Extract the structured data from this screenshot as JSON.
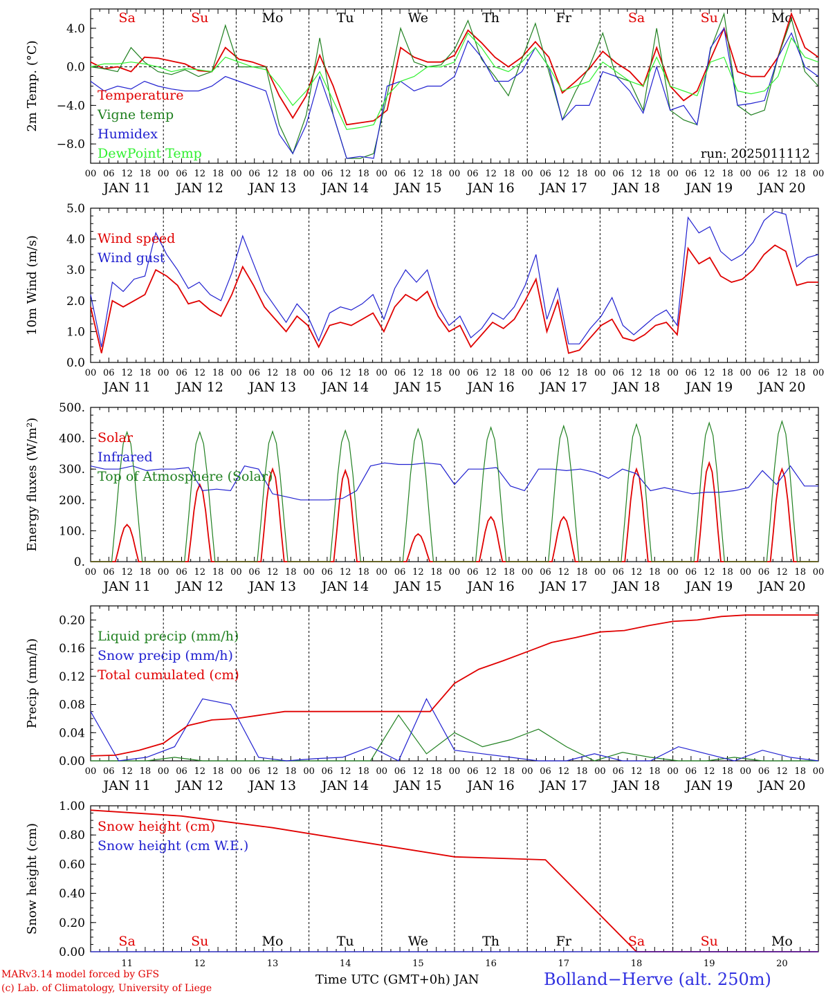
{
  "chart_data": [
    {
      "type": "line",
      "ylabel": "2m Temp. (°C)",
      "ylim": [
        -10,
        6
      ],
      "yticks": [
        -8.0,
        -4.0,
        0.0,
        4.0
      ],
      "ytick_labels": [
        "−8.0",
        "−4.0",
        "0.0",
        "4.0"
      ],
      "zero_line": true,
      "annotation": "run: 2025011112",
      "legend": [
        "Temperature",
        "Vigne temp",
        "Humidex",
        "DewPoint Temp"
      ],
      "series": [
        {
          "name": "Temperature",
          "color": "#e00000",
          "values": [
            0.5,
            -0.2,
            0.0,
            -0.5,
            1.0,
            0.9,
            0.6,
            0.3,
            -0.4,
            -0.5,
            2.0,
            0.8,
            0.5,
            0.0,
            -3.0,
            -5.3,
            -3.0,
            1.2,
            -2.0,
            -6.0,
            -5.8,
            -5.6,
            -4.5,
            2.0,
            1.0,
            0.5,
            0.5,
            1.2,
            3.8,
            2.5,
            1.0,
            0.0,
            1.0,
            2.6,
            1.0,
            -2.7,
            -1.5,
            -0.2,
            1.6,
            0.4,
            -0.5,
            -2.0,
            2.0,
            -2.0,
            -3.5,
            -2.5,
            0.8,
            4.0,
            -0.5,
            -1.0,
            -1.0,
            1.0,
            5.5,
            2.0,
            1.0
          ]
        },
        {
          "name": "Vigne temp",
          "color": "#208020",
          "values": [
            0.0,
            -0.2,
            -0.5,
            2.0,
            0.5,
            -0.5,
            -0.8,
            -0.3,
            -1.0,
            -0.5,
            4.3,
            0.0,
            0.0,
            0.0,
            -6.0,
            -9.0,
            -5.0,
            3.0,
            -5.0,
            -9.5,
            -9.5,
            -9.0,
            -3.0,
            4.0,
            0.5,
            0.0,
            0.2,
            1.8,
            4.8,
            0.8,
            -1.0,
            -3.0,
            0.8,
            4.5,
            -0.5,
            -5.5,
            -2.5,
            0.0,
            3.5,
            -1.0,
            -1.5,
            -4.5,
            4.0,
            -4.5,
            -5.5,
            -6.0,
            1.8,
            5.5,
            -4.0,
            -5.0,
            -4.5,
            1.0,
            5.0,
            -0.5,
            -2.0
          ]
        },
        {
          "name": "Humidex",
          "color": "#2020d0",
          "values": [
            -1.5,
            -2.5,
            -2.0,
            -2.3,
            -1.5,
            -2.0,
            -2.3,
            -2.5,
            -2.5,
            -2.0,
            -1.0,
            -1.5,
            -2.0,
            -2.5,
            -7.0,
            -9.0,
            -6.0,
            -1.0,
            -5.0,
            -9.5,
            -9.3,
            -9.5,
            -2.0,
            -1.5,
            -2.5,
            -2.0,
            -2.0,
            -1.0,
            2.7,
            1.0,
            -1.5,
            -1.5,
            -0.5,
            2.0,
            0.0,
            -5.5,
            -4.0,
            -4.0,
            -0.5,
            -1.0,
            -2.5,
            -4.8,
            0.0,
            -4.5,
            -4.0,
            -6.0,
            2.0,
            4.0,
            -4.0,
            -3.8,
            -3.5,
            1.0,
            3.5,
            0.0,
            -1.0
          ]
        },
        {
          "name": "DewPoint Temp",
          "color": "#30f030",
          "values": [
            0.0,
            0.3,
            0.3,
            0.5,
            0.3,
            0.0,
            -0.5,
            -0.2,
            -0.3,
            -0.5,
            1.0,
            0.5,
            0.0,
            -0.3,
            -2.0,
            -4.0,
            -2.5,
            -0.5,
            -3.5,
            -6.5,
            -6.3,
            -6.0,
            -3.0,
            -1.5,
            -1.0,
            0.0,
            0.0,
            0.5,
            3.5,
            2.0,
            0.0,
            -0.5,
            0.5,
            2.0,
            0.0,
            -2.5,
            -2.0,
            -1.5,
            0.5,
            -0.5,
            -1.5,
            -2.0,
            1.0,
            -2.0,
            -2.5,
            -3.0,
            0.5,
            1.0,
            -2.5,
            -2.8,
            -2.5,
            -1.0,
            3.0,
            1.0,
            0.5
          ]
        }
      ]
    },
    {
      "type": "line",
      "ylabel": "10m Wind (m/s)",
      "ylim": [
        0,
        5
      ],
      "yticks": [
        0.0,
        1.0,
        2.0,
        3.0,
        4.0,
        5.0
      ],
      "ytick_labels": [
        "0.0",
        "1.0",
        "2.0",
        "3.0",
        "4.0",
        "5.0"
      ],
      "legend": [
        "Wind speed",
        "Wind gust"
      ],
      "series": [
        {
          "name": "Wind speed",
          "color": "#e00000",
          "values": [
            1.8,
            0.3,
            2.0,
            1.8,
            2.0,
            2.2,
            3.0,
            2.8,
            2.5,
            1.9,
            2.0,
            1.7,
            1.5,
            2.2,
            3.1,
            2.5,
            1.8,
            1.4,
            1.0,
            1.5,
            1.2,
            0.5,
            1.2,
            1.3,
            1.2,
            1.4,
            1.6,
            1.0,
            1.8,
            2.2,
            2.0,
            2.3,
            1.5,
            1.0,
            1.2,
            0.5,
            0.9,
            1.3,
            1.1,
            1.4,
            2.0,
            2.7,
            1.0,
            2.0,
            0.3,
            0.4,
            0.8,
            1.2,
            1.4,
            0.8,
            0.7,
            0.9,
            1.2,
            1.3,
            0.9,
            3.7,
            3.2,
            3.4,
            2.8,
            2.6,
            2.7,
            3.0,
            3.5,
            3.8,
            3.6,
            2.5,
            2.6,
            2.6
          ]
        },
        {
          "name": "Wind gust",
          "color": "#2020d0",
          "values": [
            2.2,
            0.5,
            2.6,
            2.3,
            2.7,
            2.8,
            4.2,
            3.5,
            3.0,
            2.4,
            2.6,
            2.2,
            2.0,
            2.9,
            4.1,
            3.2,
            2.3,
            1.8,
            1.3,
            1.9,
            1.5,
            0.7,
            1.6,
            1.8,
            1.7,
            1.9,
            2.2,
            1.4,
            2.4,
            3.0,
            2.6,
            3.0,
            1.8,
            1.2,
            1.5,
            0.8,
            1.1,
            1.6,
            1.4,
            1.8,
            2.5,
            3.5,
            1.4,
            2.4,
            0.6,
            0.6,
            1.1,
            1.5,
            2.1,
            1.2,
            0.9,
            1.2,
            1.5,
            1.7,
            1.2,
            4.7,
            4.2,
            4.4,
            3.6,
            3.3,
            3.5,
            3.9,
            4.6,
            4.9,
            4.8,
            3.1,
            3.4,
            3.5
          ]
        }
      ]
    },
    {
      "type": "line",
      "ylabel": "Energy fluxes (W/m²)",
      "ylim": [
        0,
        500
      ],
      "yticks": [
        0,
        100,
        200,
        300,
        400,
        500
      ],
      "ytick_labels": [
        "0.",
        "100.",
        "200.",
        "300.",
        "400.",
        "500."
      ],
      "legend": [
        "Solar",
        "Infrared",
        "Top of Atmosphere (Solar)"
      ],
      "series": [
        {
          "name": "Solar",
          "color": "#e00000",
          "peaks": [
            120,
            250,
            300,
            295,
            90,
            145,
            145,
            300,
            320,
            300
          ]
        },
        {
          "name": "Infrared",
          "color": "#2020d0",
          "values": [
            310,
            300,
            300,
            310,
            295,
            300,
            300,
            305,
            230,
            235,
            230,
            310,
            300,
            220,
            210,
            200,
            200,
            200,
            205,
            230,
            310,
            320,
            315,
            315,
            320,
            315,
            250,
            300,
            300,
            305,
            245,
            230,
            300,
            300,
            295,
            300,
            290,
            270,
            300,
            285,
            230,
            240,
            230,
            220,
            225,
            225,
            230,
            240,
            295,
            250,
            310,
            245,
            245
          ]
        },
        {
          "name": "Top of Atmosphere (Solar)",
          "color": "#208020",
          "peaks": [
            420,
            420,
            422,
            425,
            430,
            435,
            440,
            445,
            450,
            455
          ]
        }
      ]
    },
    {
      "type": "line",
      "ylabel": "Precip (mm/h)",
      "ylim": [
        0,
        0.22
      ],
      "yticks": [
        0.0,
        0.04,
        0.08,
        0.12,
        0.16,
        0.2
      ],
      "ytick_labels": [
        "0.00",
        "0.04",
        "0.08",
        "0.12",
        "0.16",
        "0.20"
      ],
      "legend": [
        "Liquid precip (mm/h)",
        "Snow precip (mm/h)",
        "Total cumulated (cm)"
      ],
      "series": [
        {
          "name": "Liquid precip (mm/h)",
          "color": "#208020",
          "values": [
            0.0,
            0.0,
            0.0,
            0.005,
            0.0,
            0.0,
            0.0,
            0.0,
            0.0,
            0.0,
            0.0,
            0.065,
            0.01,
            0.04,
            0.02,
            0.03,
            0.045,
            0.02,
            0.0,
            0.012,
            0.005,
            0.0,
            0.0,
            0.005,
            0.0,
            0.0,
            0.0
          ]
        },
        {
          "name": "Snow precip (mm/h)",
          "color": "#2020d0",
          "values": [
            0.07,
            0.0,
            0.005,
            0.02,
            0.088,
            0.08,
            0.005,
            0.0,
            0.003,
            0.005,
            0.02,
            0.0,
            0.088,
            0.015,
            0.01,
            0.005,
            0.0,
            0.0,
            0.01,
            0.0,
            0.0,
            0.02,
            0.01,
            0.0,
            0.015,
            0.005,
            0.0
          ]
        },
        {
          "name": "Total cumulated (cm)",
          "color": "#e00000",
          "values": [
            0.007,
            0.008,
            0.015,
            0.025,
            0.05,
            0.058,
            0.06,
            0.065,
            0.07,
            0.07,
            0.07,
            0.07,
            0.07,
            0.07,
            0.07,
            0.11,
            0.13,
            0.142,
            0.155,
            0.168,
            0.175,
            0.183,
            0.185,
            0.192,
            0.198,
            0.2,
            0.205,
            0.207,
            0.207,
            0.207,
            0.207
          ]
        }
      ]
    },
    {
      "type": "line",
      "ylabel": "Snow height (cm)",
      "ylim": [
        0,
        1
      ],
      "yticks": [
        0.0,
        0.2,
        0.4,
        0.6,
        0.8,
        1.0
      ],
      "ytick_labels": [
        "0.00",
        "0.20",
        "0.40",
        "0.60",
        "0.80",
        "1.00"
      ],
      "legend": [
        "Snow height (cm)",
        "Snow height (cm W.E.)"
      ],
      "series": [
        {
          "name": "Snow height (cm)",
          "color": "#e00000",
          "values": [
            0.97,
            0.93,
            0.85,
            0.75,
            0.65,
            0.63,
            0.0,
            0.0,
            0.0
          ]
        },
        {
          "name": "Snow height (cm W.E.)",
          "color": "#2020d0",
          "values": [
            0.0,
            0.0
          ]
        }
      ]
    }
  ],
  "x_axis": {
    "hour_labels": [
      "00",
      "06",
      "12",
      "18"
    ],
    "day_labels": [
      "JAN 11",
      "JAN 12",
      "JAN 13",
      "JAN 14",
      "JAN 15",
      "JAN 16",
      "JAN 17",
      "JAN 18",
      "JAN 19",
      "JAN 20"
    ],
    "last_label": "00",
    "weekdays": [
      "Sa",
      "Su",
      "Mo",
      "Tu",
      "We",
      "Th",
      "Fr",
      "Sa",
      "Su",
      "Mo"
    ],
    "weekday_colors": [
      "#e00000",
      "#e00000",
      "#000000",
      "#000000",
      "#000000",
      "#000000",
      "#000000",
      "#e00000",
      "#e00000",
      "#000000"
    ],
    "bottom_days": [
      "11",
      "12",
      "13",
      "14",
      "15",
      "16",
      "17",
      "18",
      "19",
      "20"
    ]
  },
  "footer": {
    "model": "MARv3.14 model forced by GFS",
    "credit": "(c) Lab. of Climatology, University of Liege",
    "time_label": "Time UTC (GMT+0h) JAN",
    "location": "Bolland−Herve (alt. 250m)"
  }
}
